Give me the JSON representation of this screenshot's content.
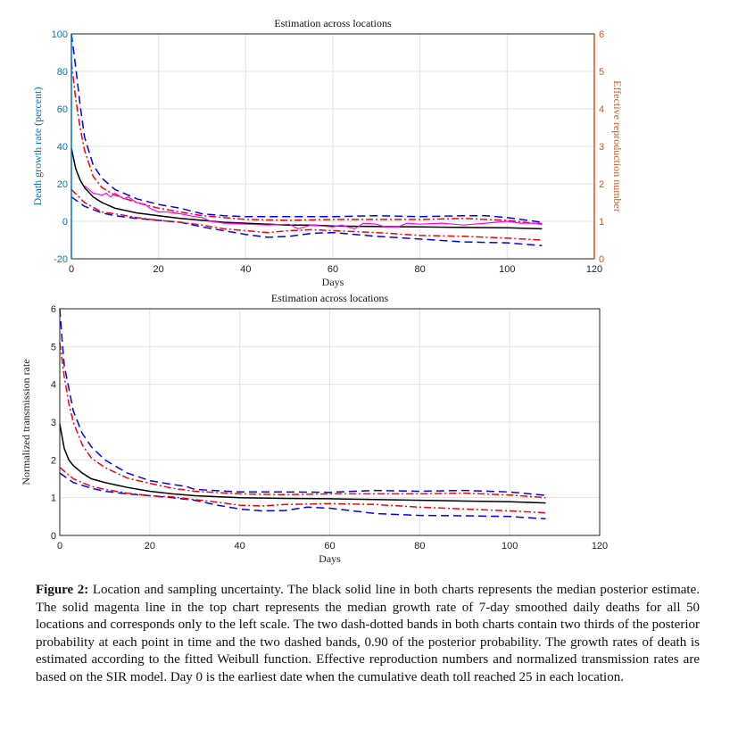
{
  "chart_data": [
    {
      "type": "line",
      "title": "Estimation across locations",
      "xlabel": "Days",
      "ylabel": "Death growth rate (percent)",
      "ylabel_right": "Effective reproduction number",
      "xlim": [
        0,
        120
      ],
      "ylim": [
        -20,
        100
      ],
      "ylim_right": [
        0,
        6
      ],
      "xticks": [
        "0",
        "20",
        "40",
        "60",
        "80",
        "100",
        "120"
      ],
      "yticks": [
        "-20",
        "0",
        "20",
        "40",
        "60",
        "80",
        "100"
      ],
      "yticks_right": [
        "0",
        "1",
        "2",
        "3",
        "4",
        "5",
        "6"
      ],
      "grid": true,
      "colors": {
        "left_axis": "#0072BD",
        "right_axis": "#D95319"
      },
      "series": [
        {
          "name": "median",
          "color": "#000000",
          "style": "solid",
          "x": [
            0,
            1,
            2,
            3,
            5,
            7,
            10,
            15,
            20,
            25,
            30,
            35,
            40,
            45,
            50,
            55,
            60,
            70,
            80,
            90,
            100,
            108
          ],
          "y": [
            39,
            28,
            22,
            18,
            13,
            10,
            7,
            4.5,
            3,
            1.5,
            0.5,
            -0.5,
            -1,
            -1.5,
            -2,
            -2,
            -2.5,
            -2.8,
            -3,
            -3.3,
            -3.5,
            -4
          ]
        },
        {
          "name": "upper 0.90 band",
          "color": "#0000FF",
          "style": "dashed",
          "x": [
            0,
            1,
            2,
            3,
            5,
            7,
            10,
            15,
            20,
            25,
            30,
            35,
            40,
            50,
            60,
            70,
            80,
            90,
            95,
            100,
            108
          ],
          "y": [
            100,
            82,
            62,
            45,
            30,
            23,
            17,
            12,
            9,
            7,
            4,
            3,
            2.5,
            2.5,
            2.5,
            3,
            2.5,
            3,
            3,
            2,
            -0.5
          ]
        },
        {
          "name": "lower 0.90 band",
          "color": "#0000FF",
          "style": "dashed",
          "x": [
            0,
            3,
            7,
            10,
            15,
            20,
            25,
            30,
            35,
            40,
            45,
            50,
            55,
            60,
            70,
            80,
            90,
            100,
            108
          ],
          "y": [
            13,
            8,
            4.5,
            3,
            1.5,
            0.5,
            -0.5,
            -3,
            -5,
            -7,
            -8.5,
            -8,
            -6.5,
            -6,
            -8,
            -9.5,
            -11,
            -11.5,
            -13
          ]
        },
        {
          "name": "upper two-thirds band",
          "color": "#FF0000",
          "style": "dashdot",
          "x": [
            0,
            1,
            2,
            3,
            5,
            7,
            10,
            15,
            20,
            25,
            30,
            40,
            50,
            60,
            70,
            80,
            90,
            100,
            108
          ],
          "y": [
            85,
            65,
            50,
            38,
            24,
            18,
            14,
            10,
            7,
            5,
            3,
            1,
            0.5,
            1,
            1,
            1,
            1.5,
            0.5,
            -1.5
          ]
        },
        {
          "name": "lower two-thirds band",
          "color": "#FF0000",
          "style": "dashdot",
          "x": [
            0,
            3,
            7,
            10,
            15,
            20,
            25,
            30,
            35,
            40,
            45,
            50,
            55,
            60,
            70,
            80,
            90,
            100,
            108
          ],
          "y": [
            17,
            10,
            5,
            4,
            2,
            0.5,
            -0.5,
            -2,
            -4,
            -5,
            -6,
            -5,
            -4.5,
            -5,
            -6,
            -7.5,
            -8,
            -9,
            -10
          ]
        },
        {
          "name": "median growth rate 7-day smoothed",
          "color": "#FF00FF",
          "style": "solid",
          "x": [
            3,
            5,
            7,
            8,
            9,
            10,
            12,
            13,
            15,
            17,
            18,
            20,
            22,
            25,
            27,
            30,
            32,
            35,
            40,
            45,
            50,
            52,
            55,
            60,
            62,
            65,
            67,
            70,
            72,
            75,
            77,
            80,
            85,
            90,
            95,
            100,
            103,
            108
          ],
          "y": [
            19,
            15,
            14,
            15,
            13,
            15,
            12,
            13,
            10,
            9,
            7,
            5,
            5,
            4,
            3,
            2,
            0,
            -1,
            -1.5,
            -2,
            -1.5,
            -4,
            -2,
            -3,
            -2,
            -4,
            -1,
            -1.5,
            -3,
            -3,
            -1,
            -1.5,
            -1,
            -2,
            -1,
            0,
            -1,
            -1
          ]
        }
      ]
    },
    {
      "type": "line",
      "title": "Estimation across locations",
      "xlabel": "Days",
      "ylabel": "Normalized transmission rate",
      "xlim": [
        0,
        120
      ],
      "ylim": [
        0,
        6
      ],
      "xticks": [
        "0",
        "20",
        "40",
        "60",
        "80",
        "100",
        "120"
      ],
      "yticks": [
        "0",
        "1",
        "2",
        "3",
        "4",
        "5",
        "6"
      ],
      "grid": true,
      "series": [
        {
          "name": "median",
          "color": "#000000",
          "style": "solid",
          "x": [
            0,
            1,
            2,
            3,
            5,
            7,
            10,
            15,
            20,
            25,
            30,
            40,
            50,
            60,
            70,
            80,
            90,
            100,
            108
          ],
          "y": [
            2.95,
            2.3,
            2.0,
            1.85,
            1.65,
            1.5,
            1.4,
            1.27,
            1.17,
            1.1,
            1.05,
            1.0,
            0.98,
            0.97,
            0.95,
            0.93,
            0.91,
            0.89,
            0.86
          ]
        },
        {
          "name": "upper 0.90 band",
          "color": "#0000FF",
          "style": "dashed",
          "x": [
            0,
            0.5,
            1,
            2,
            3,
            5,
            7,
            10,
            15,
            20,
            25,
            28,
            30,
            40,
            50,
            60,
            70,
            80,
            90,
            100,
            108
          ],
          "y": [
            6,
            5.2,
            4.5,
            3.9,
            3.3,
            2.7,
            2.35,
            2.0,
            1.65,
            1.45,
            1.35,
            1.3,
            1.22,
            1.15,
            1.15,
            1.14,
            1.19,
            1.17,
            1.19,
            1.15,
            1.06
          ]
        },
        {
          "name": "lower 0.90 band",
          "color": "#0000FF",
          "style": "dashed",
          "x": [
            0,
            3,
            7,
            10,
            15,
            20,
            25,
            30,
            35,
            40,
            45,
            50,
            55,
            60,
            70,
            80,
            90,
            100,
            108
          ],
          "y": [
            1.65,
            1.4,
            1.25,
            1.17,
            1.1,
            1.05,
            1.0,
            0.93,
            0.8,
            0.7,
            0.65,
            0.66,
            0.75,
            0.72,
            0.58,
            0.53,
            0.52,
            0.5,
            0.44
          ]
        },
        {
          "name": "upper two-thirds band",
          "color": "#FF0000",
          "style": "dashdot",
          "x": [
            0,
            1,
            2,
            3,
            5,
            7,
            10,
            15,
            20,
            25,
            30,
            40,
            50,
            60,
            70,
            80,
            90,
            100,
            108
          ],
          "y": [
            5.1,
            4.2,
            3.5,
            3.0,
            2.4,
            2.05,
            1.8,
            1.52,
            1.38,
            1.25,
            1.17,
            1.1,
            1.08,
            1.1,
            1.1,
            1.1,
            1.12,
            1.07,
            1.0
          ]
        },
        {
          "name": "lower two-thirds band",
          "color": "#FF0000",
          "style": "dashdot",
          "x": [
            0,
            3,
            7,
            10,
            15,
            20,
            25,
            30,
            35,
            40,
            45,
            50,
            55,
            60,
            70,
            80,
            90,
            100,
            108
          ],
          "y": [
            1.8,
            1.5,
            1.3,
            1.22,
            1.12,
            1.05,
            1.02,
            0.95,
            0.88,
            0.8,
            0.78,
            0.82,
            0.83,
            0.84,
            0.82,
            0.75,
            0.7,
            0.65,
            0.6
          ]
        }
      ]
    }
  ],
  "caption": {
    "label": "Figure 2:",
    "text": "Location and sampling uncertainty. The black solid line in both charts represents the median posterior estimate. The solid magenta line in the top chart represents the median growth rate of 7-day smoothed daily deaths for all 50 locations and corresponds only to the left scale. The two dash-dotted bands in both charts contain two thirds of the posterior probability at each point in time and the two dashed bands, 0.90 of the posterior probability. The growth rates of death is estimated according to the fitted Weibull function. Effective reproduction numbers and normalized transmission rates are based on the SIR model. Day 0 is the earliest date when the cumulative death toll reached 25 in each location."
  }
}
